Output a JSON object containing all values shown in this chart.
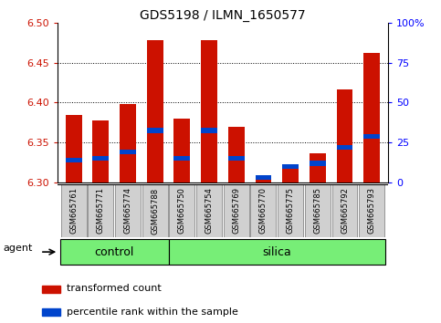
{
  "title": "GDS5198 / ILMN_1650577",
  "samples": [
    "GSM665761",
    "GSM665771",
    "GSM665774",
    "GSM665788",
    "GSM665750",
    "GSM665754",
    "GSM665769",
    "GSM665770",
    "GSM665775",
    "GSM665785",
    "GSM665792",
    "GSM665793"
  ],
  "groups": [
    "control",
    "control",
    "control",
    "control",
    "silica",
    "silica",
    "silica",
    "silica",
    "silica",
    "silica",
    "silica",
    "silica"
  ],
  "red_values": [
    6.385,
    6.378,
    6.398,
    6.478,
    6.38,
    6.478,
    6.37,
    6.308,
    6.322,
    6.336,
    6.416,
    6.462
  ],
  "blue_values": [
    6.328,
    6.33,
    6.338,
    6.365,
    6.33,
    6.365,
    6.33,
    6.306,
    6.32,
    6.324,
    6.344,
    6.358
  ],
  "ylim_left": [
    6.3,
    6.5
  ],
  "ylim_right": [
    0,
    100
  ],
  "yticks_left": [
    6.3,
    6.35,
    6.4,
    6.45,
    6.5
  ],
  "yticks_right": [
    0,
    25,
    50,
    75,
    100
  ],
  "ytick_labels_right": [
    "0",
    "25",
    "50",
    "75",
    "100%"
  ],
  "grid_values": [
    6.35,
    6.4,
    6.45
  ],
  "bar_width": 0.6,
  "red_color": "#cc1100",
  "blue_color": "#0044cc",
  "control_color": "#77ee77",
  "silica_color": "#77ee77",
  "agent_label": "agent",
  "legend_items": [
    "transformed count",
    "percentile rank within the sample"
  ],
  "base": 6.3,
  "n_control": 4,
  "n_silica": 8
}
